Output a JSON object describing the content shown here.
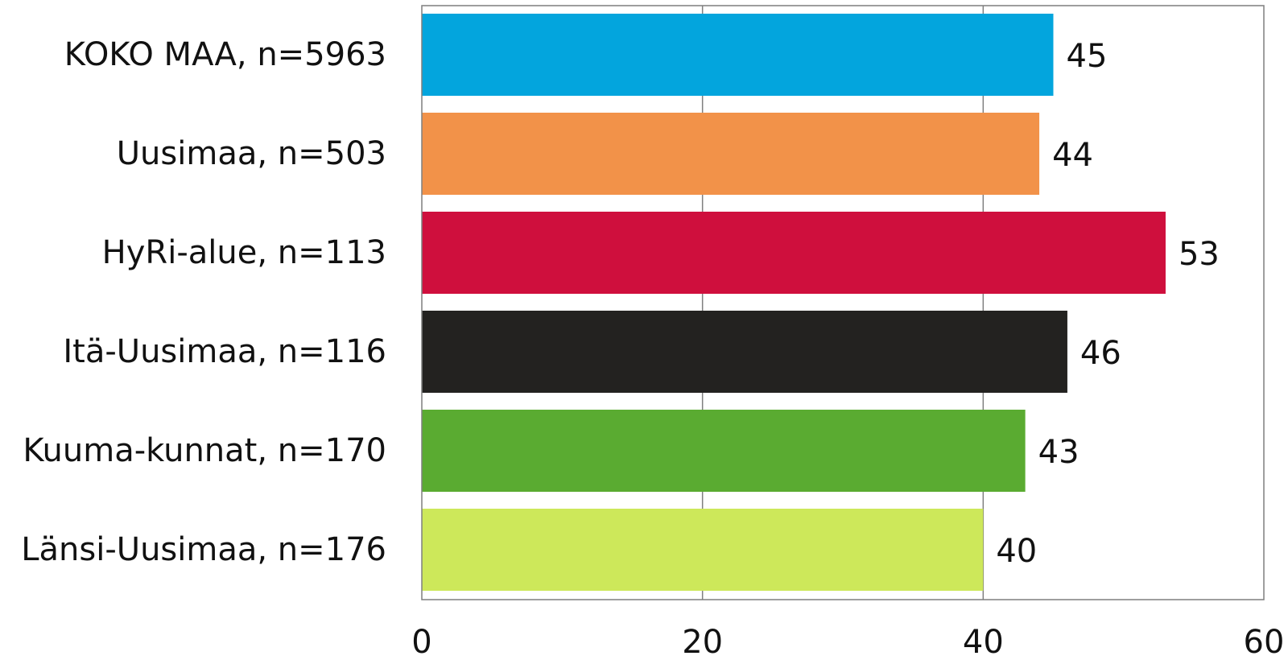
{
  "chart_data": {
    "type": "bar",
    "orientation": "horizontal",
    "categories": [
      "KOKO MAA, n=5963",
      "Uusimaa, n=503",
      "HyRi-alue, n=113",
      "Itä-Uusimaa, n=116",
      "Kuuma-kunnat, n=170",
      "Länsi-Uusimaa, n=176"
    ],
    "values": [
      45,
      44,
      53,
      46,
      43,
      40
    ],
    "value_labels": [
      "45",
      "44",
      "53",
      "46",
      "43",
      "40"
    ],
    "colors": [
      "#03a5dd",
      "#f29249",
      "#cf0f3d",
      "#232220",
      "#5aab31",
      "#cde85a"
    ],
    "xlim": [
      0,
      60
    ],
    "xticks": [
      0,
      20,
      40,
      60
    ],
    "xtick_labels": [
      "0",
      "20",
      "40",
      "60"
    ],
    "grid": true,
    "title": "",
    "xlabel": "",
    "ylabel": ""
  }
}
